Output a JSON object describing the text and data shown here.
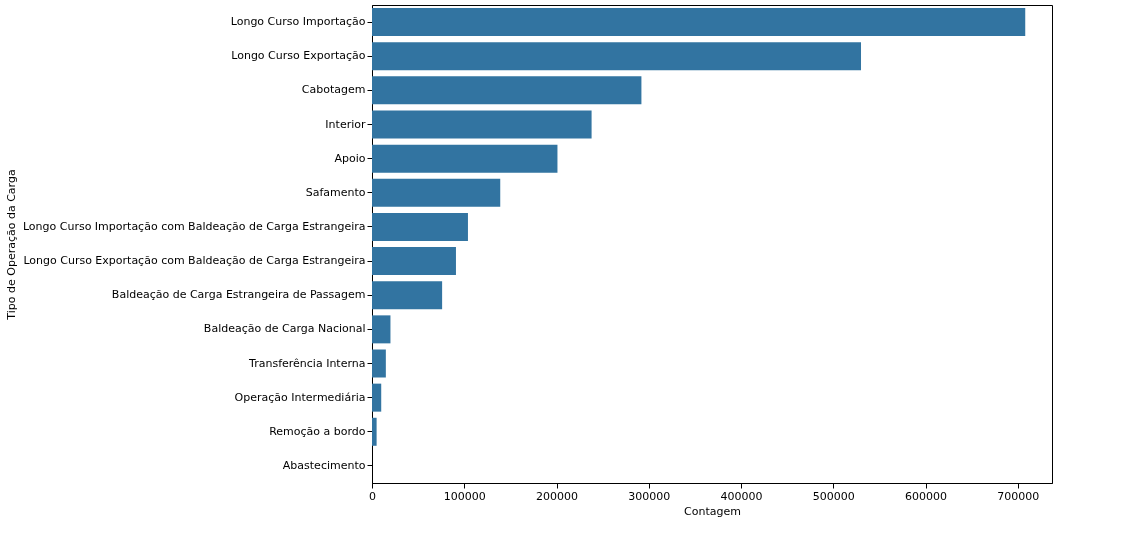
{
  "chart_data": {
    "type": "bar",
    "orientation": "horizontal",
    "xlabel": "Contagem",
    "ylabel": "Tipo de Operação da Carga",
    "categories": [
      "Longo Curso Importação",
      "Longo Curso Exportação",
      "Cabotagem",
      "Interior",
      "Apoio",
      "Safamento",
      "Longo Curso Importação com Baldeação de Carga Estrangeira",
      "Longo Curso Exportação com Baldeação de Carga Estrangeira",
      "Baldeação de Carga Estrangeira de Passagem",
      "Baldeação de Carga Nacional",
      "Transferência Interna",
      "Operação Intermediária",
      "Remoção a bordo",
      "Abastecimento"
    ],
    "values": [
      708000,
      530000,
      292000,
      238000,
      201000,
      139000,
      104000,
      91000,
      76000,
      20000,
      15000,
      10000,
      5000,
      0
    ],
    "color": "#3274a1",
    "xlim": [
      0,
      737000
    ],
    "xticks": [
      0,
      100000,
      200000,
      300000,
      400000,
      500000,
      600000,
      700000
    ],
    "grid": false
  }
}
